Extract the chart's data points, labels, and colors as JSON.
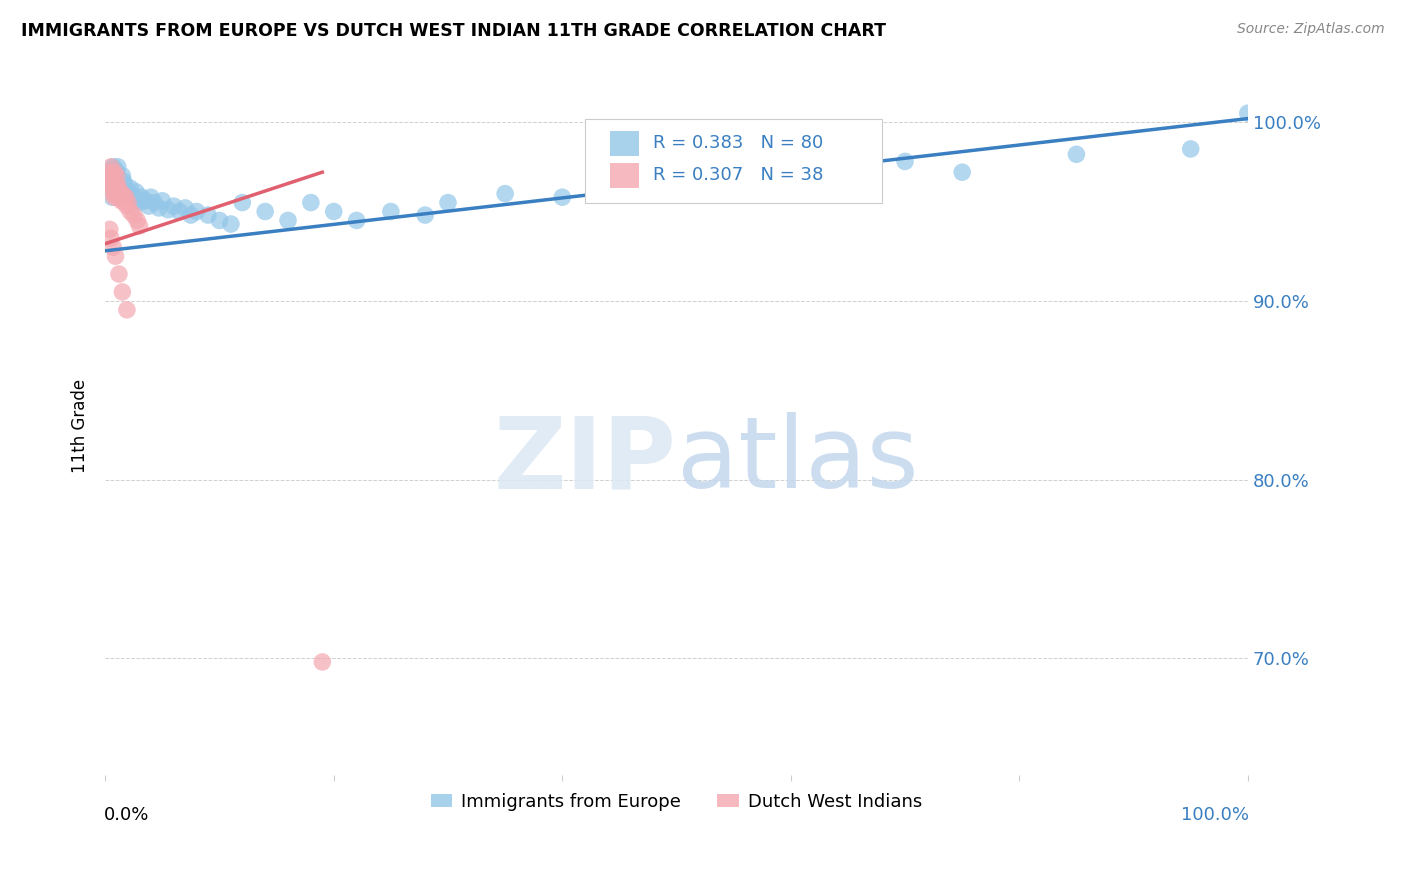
{
  "title": "IMMIGRANTS FROM EUROPE VS DUTCH WEST INDIAN 11TH GRADE CORRELATION CHART",
  "source": "Source: ZipAtlas.com",
  "ylabel": "11th Grade",
  "blue_label": "Immigrants from Europe",
  "pink_label": "Dutch West Indians",
  "blue_R": 0.383,
  "blue_N": 80,
  "pink_R": 0.307,
  "pink_N": 38,
  "blue_color": "#93c6e8",
  "pink_color": "#f4a8b0",
  "blue_line_color": "#3a7fc1",
  "pink_line_color": "#e06070",
  "ytick_labels": [
    "100.0%",
    "90.0%",
    "80.0%",
    "70.0%"
  ],
  "ytick_values": [
    1.0,
    0.9,
    0.8,
    0.7
  ],
  "xlim": [
    0.0,
    1.0
  ],
  "ylim": [
    0.635,
    1.025
  ],
  "blue_trend_x": [
    0.0,
    1.0
  ],
  "blue_trend_y": [
    0.928,
    1.002
  ],
  "pink_trend_x": [
    0.0,
    0.19
  ],
  "pink_trend_y": [
    0.932,
    0.972
  ],
  "blue_scatter_x": [
    0.003,
    0.004,
    0.005,
    0.005,
    0.005,
    0.006,
    0.006,
    0.007,
    0.007,
    0.007,
    0.008,
    0.008,
    0.008,
    0.009,
    0.009,
    0.009,
    0.01,
    0.01,
    0.01,
    0.01,
    0.011,
    0.011,
    0.011,
    0.012,
    0.012,
    0.013,
    0.013,
    0.014,
    0.015,
    0.015,
    0.016,
    0.016,
    0.017,
    0.018,
    0.019,
    0.02,
    0.021,
    0.022,
    0.023,
    0.025,
    0.027,
    0.028,
    0.03,
    0.032,
    0.035,
    0.038,
    0.04,
    0.043,
    0.047,
    0.05,
    0.055,
    0.06,
    0.065,
    0.07,
    0.075,
    0.08,
    0.09,
    0.1,
    0.11,
    0.12,
    0.14,
    0.16,
    0.18,
    0.2,
    0.22,
    0.25,
    0.28,
    0.3,
    0.35,
    0.4,
    0.45,
    0.5,
    0.55,
    0.6,
    0.65,
    0.7,
    0.75,
    0.85,
    0.95,
    1.0
  ],
  "blue_scatter_y": [
    0.968,
    0.971,
    0.966,
    0.972,
    0.963,
    0.974,
    0.958,
    0.969,
    0.965,
    0.975,
    0.967,
    0.962,
    0.971,
    0.968,
    0.964,
    0.973,
    0.969,
    0.966,
    0.963,
    0.972,
    0.967,
    0.961,
    0.975,
    0.968,
    0.964,
    0.966,
    0.962,
    0.965,
    0.97,
    0.963,
    0.967,
    0.96,
    0.965,
    0.963,
    0.962,
    0.961,
    0.96,
    0.963,
    0.959,
    0.958,
    0.961,
    0.956,
    0.955,
    0.958,
    0.956,
    0.953,
    0.958,
    0.955,
    0.952,
    0.956,
    0.951,
    0.953,
    0.95,
    0.952,
    0.948,
    0.95,
    0.948,
    0.945,
    0.943,
    0.955,
    0.95,
    0.945,
    0.955,
    0.95,
    0.945,
    0.95,
    0.948,
    0.955,
    0.96,
    0.958,
    0.965,
    0.97,
    0.968,
    0.972,
    0.975,
    0.978,
    0.972,
    0.982,
    0.985,
    1.005
  ],
  "pink_scatter_x": [
    0.003,
    0.004,
    0.005,
    0.005,
    0.006,
    0.006,
    0.007,
    0.007,
    0.008,
    0.008,
    0.008,
    0.009,
    0.009,
    0.01,
    0.01,
    0.011,
    0.011,
    0.012,
    0.013,
    0.014,
    0.015,
    0.016,
    0.017,
    0.018,
    0.019,
    0.02,
    0.022,
    0.025,
    0.028,
    0.03,
    0.004,
    0.005,
    0.007,
    0.009,
    0.012,
    0.015,
    0.019,
    0.19
  ],
  "pink_scatter_y": [
    0.972,
    0.968,
    0.975,
    0.965,
    0.97,
    0.963,
    0.968,
    0.96,
    0.972,
    0.965,
    0.958,
    0.966,
    0.96,
    0.97,
    0.963,
    0.965,
    0.958,
    0.962,
    0.959,
    0.956,
    0.96,
    0.958,
    0.955,
    0.958,
    0.953,
    0.955,
    0.95,
    0.948,
    0.945,
    0.942,
    0.94,
    0.935,
    0.93,
    0.925,
    0.915,
    0.905,
    0.895,
    0.698
  ]
}
